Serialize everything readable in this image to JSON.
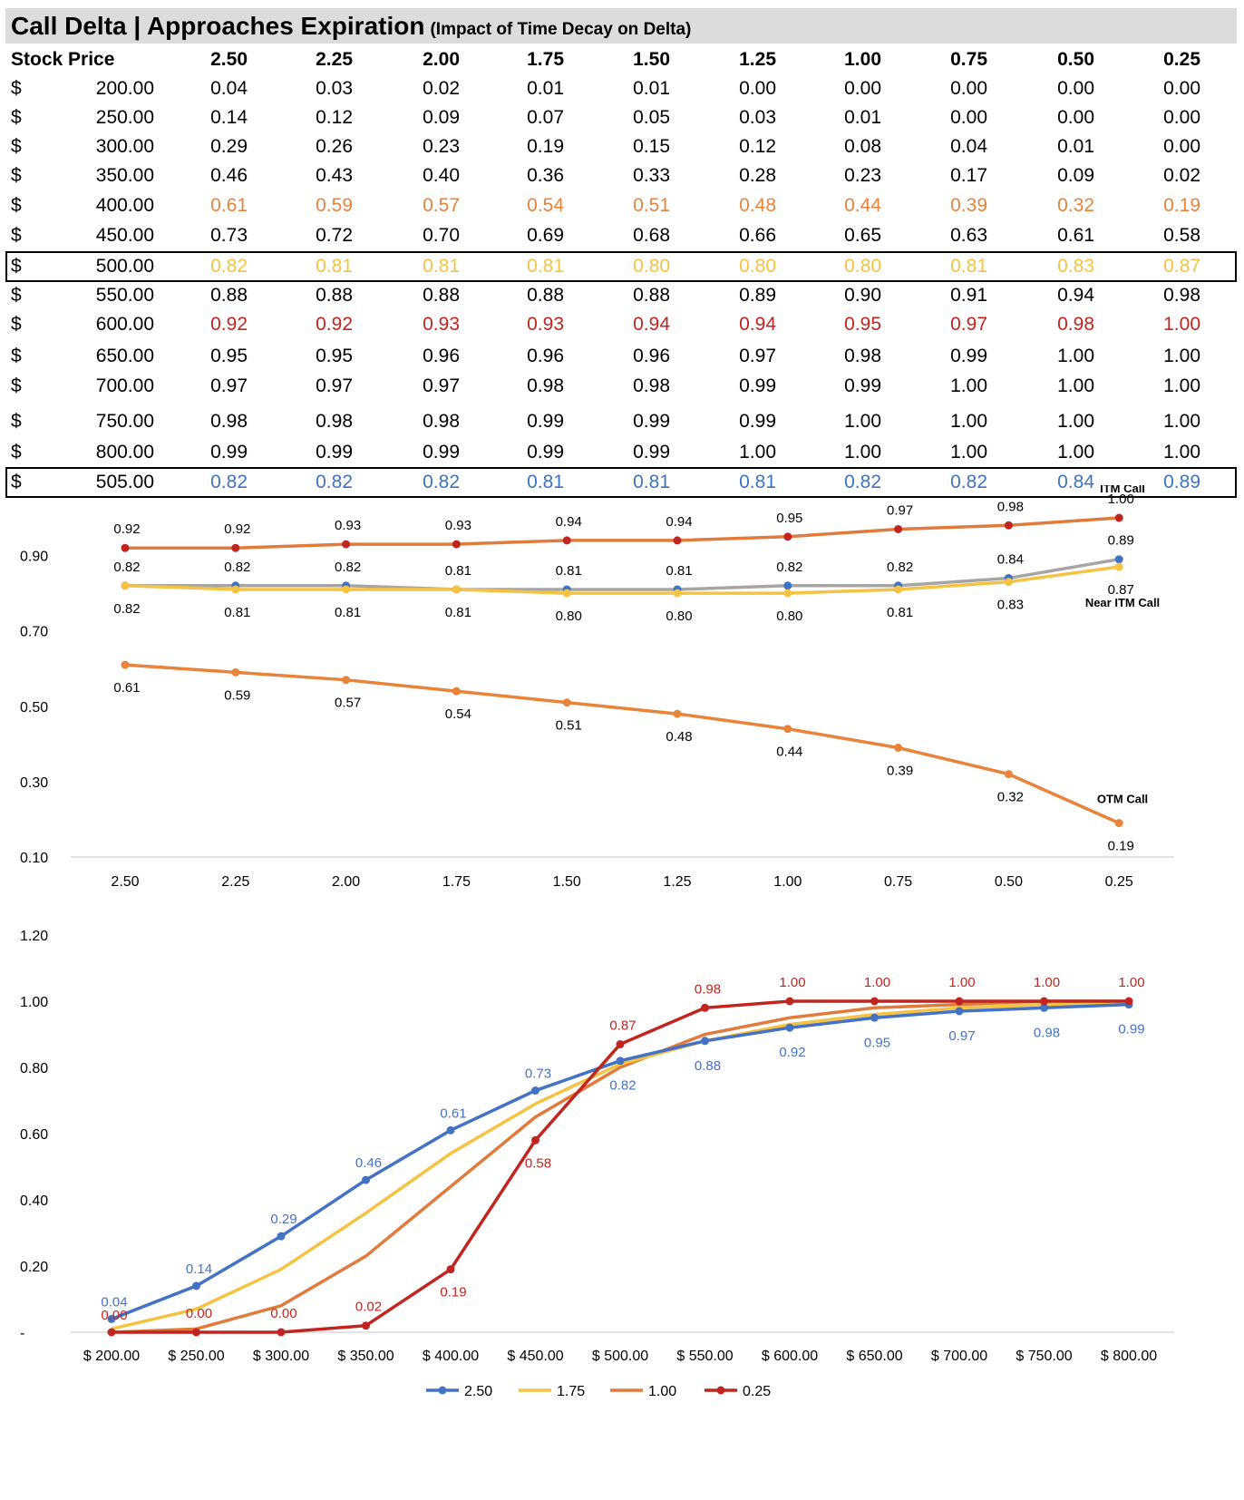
{
  "title": "Call Delta | Approaches Expiration",
  "subtitle": "(Impact of Time Decay on Delta)",
  "table": {
    "header_label": "Stock Price",
    "currency": "$",
    "times": [
      "2.50",
      "2.25",
      "2.00",
      "1.75",
      "1.50",
      "1.25",
      "1.00",
      "0.75",
      "0.50",
      "0.25"
    ],
    "rows": [
      {
        "price": "200.00",
        "values": [
          "0.04",
          "0.03",
          "0.02",
          "0.01",
          "0.01",
          "0.00",
          "0.00",
          "0.00",
          "0.00",
          "0.00"
        ],
        "color": "#000000",
        "boxed": false
      },
      {
        "price": "250.00",
        "values": [
          "0.14",
          "0.12",
          "0.09",
          "0.07",
          "0.05",
          "0.03",
          "0.01",
          "0.00",
          "0.00",
          "0.00"
        ],
        "color": "#000000",
        "boxed": false
      },
      {
        "price": "300.00",
        "values": [
          "0.29",
          "0.26",
          "0.23",
          "0.19",
          "0.15",
          "0.12",
          "0.08",
          "0.04",
          "0.01",
          "0.00"
        ],
        "color": "#000000",
        "boxed": false
      },
      {
        "price": "350.00",
        "values": [
          "0.46",
          "0.43",
          "0.40",
          "0.36",
          "0.33",
          "0.28",
          "0.23",
          "0.17",
          "0.09",
          "0.02"
        ],
        "color": "#000000",
        "boxed": false
      },
      {
        "price": "400.00",
        "values": [
          "0.61",
          "0.59",
          "0.57",
          "0.54",
          "0.51",
          "0.48",
          "0.44",
          "0.39",
          "0.32",
          "0.19"
        ],
        "color": "#e8833a",
        "boxed": false
      },
      {
        "price": "450.00",
        "values": [
          "0.73",
          "0.72",
          "0.70",
          "0.69",
          "0.68",
          "0.66",
          "0.65",
          "0.63",
          "0.61",
          "0.58"
        ],
        "color": "#000000",
        "boxed": false
      },
      {
        "price": "500.00",
        "values": [
          "0.82",
          "0.81",
          "0.81",
          "0.81",
          "0.80",
          "0.80",
          "0.80",
          "0.81",
          "0.83",
          "0.87"
        ],
        "color": "#f5c342",
        "boxed": true
      },
      {
        "price": "550.00",
        "values": [
          "0.88",
          "0.88",
          "0.88",
          "0.88",
          "0.88",
          "0.89",
          "0.90",
          "0.91",
          "0.94",
          "0.98"
        ],
        "color": "#000000",
        "boxed": false
      },
      {
        "price": "600.00",
        "values": [
          "0.92",
          "0.92",
          "0.93",
          "0.93",
          "0.94",
          "0.94",
          "0.95",
          "0.97",
          "0.98",
          "1.00"
        ],
        "color": "#c0251f",
        "boxed": false
      },
      {
        "price": "650.00",
        "values": [
          "0.95",
          "0.95",
          "0.96",
          "0.96",
          "0.96",
          "0.97",
          "0.98",
          "0.99",
          "1.00",
          "1.00"
        ],
        "color": "#000000",
        "boxed": false
      },
      {
        "price": "700.00",
        "values": [
          "0.97",
          "0.97",
          "0.97",
          "0.98",
          "0.98",
          "0.99",
          "0.99",
          "1.00",
          "1.00",
          "1.00"
        ],
        "color": "#000000",
        "boxed": false
      },
      {
        "price": "750.00",
        "values": [
          "0.98",
          "0.98",
          "0.98",
          "0.99",
          "0.99",
          "0.99",
          "1.00",
          "1.00",
          "1.00",
          "1.00"
        ],
        "color": "#000000",
        "boxed": false
      },
      {
        "price": "800.00",
        "values": [
          "0.99",
          "0.99",
          "0.99",
          "0.99",
          "0.99",
          "1.00",
          "1.00",
          "1.00",
          "1.00",
          "1.00"
        ],
        "color": "#000000",
        "boxed": false
      },
      {
        "price": "505.00",
        "values": [
          "0.82",
          "0.82",
          "0.82",
          "0.81",
          "0.81",
          "0.81",
          "0.82",
          "0.82",
          "0.84",
          "0.89"
        ],
        "color": "#3d73c5",
        "boxed": true
      }
    ]
  },
  "chart_data": [
    {
      "type": "line",
      "x": [
        "2.50",
        "2.25",
        "2.00",
        "1.75",
        "1.50",
        "1.25",
        "1.00",
        "0.75",
        "0.50",
        "0.25"
      ],
      "yticks": [
        "0.10",
        "0.30",
        "0.50",
        "0.70",
        "0.90"
      ],
      "ylim": [
        0.1,
        1.0
      ],
      "grid": false,
      "series": [
        {
          "name": "ITM Call",
          "values": [
            0.92,
            0.92,
            0.93,
            0.93,
            0.94,
            0.94,
            0.95,
            0.97,
            0.98,
            1.0
          ],
          "labels": [
            "0.92",
            "0.92",
            "0.93",
            "0.93",
            "0.94",
            "0.94",
            "0.95",
            "0.97",
            "0.98",
            "1.00"
          ],
          "color": "#e07b3c",
          "marker": "#c0251f",
          "label_pos": "above"
        },
        {
          "name": "",
          "values": [
            0.82,
            0.82,
            0.82,
            0.81,
            0.81,
            0.81,
            0.82,
            0.82,
            0.84,
            0.89
          ],
          "labels": [
            "0.82",
            "0.82",
            "0.82",
            "0.81",
            "0.81",
            "0.81",
            "0.82",
            "0.82",
            "0.84",
            "0.89"
          ],
          "color": "#a5a5a5",
          "marker": "#3d73c5",
          "label_pos": "above"
        },
        {
          "name": "Near ITM Call",
          "values": [
            0.82,
            0.81,
            0.81,
            0.81,
            0.8,
            0.8,
            0.8,
            0.81,
            0.83,
            0.87
          ],
          "labels": [
            "0.82",
            "0.81",
            "0.81",
            "0.81",
            "0.80",
            "0.80",
            "0.80",
            "0.81",
            "0.83",
            "0.87"
          ],
          "color": "#f5c342",
          "marker": "#f5c342",
          "label_pos": "below"
        },
        {
          "name": "OTM Call",
          "values": [
            0.61,
            0.59,
            0.57,
            0.54,
            0.51,
            0.48,
            0.44,
            0.39,
            0.32,
            0.19
          ],
          "labels": [
            "0.61",
            "0.59",
            "0.57",
            "0.54",
            "0.51",
            "0.48",
            "0.44",
            "0.39",
            "0.32",
            "0.19"
          ],
          "color": "#e8833a",
          "marker": "#e8833a",
          "label_pos": "below"
        }
      ]
    },
    {
      "type": "line",
      "x": [
        "$ 200.00",
        "$ 250.00",
        "$ 300.00",
        "$ 350.00",
        "$ 400.00",
        "$ 450.00",
        "$ 500.00",
        "$ 550.00",
        "$ 600.00",
        "$ 650.00",
        "$ 700.00",
        "$ 750.00",
        "$ 800.00"
      ],
      "yticks": [
        "-",
        "0.20",
        "0.40",
        "0.60",
        "0.80",
        "1.00",
        "1.20"
      ],
      "ylim": [
        0,
        1.2
      ],
      "grid": false,
      "legend": "bottom",
      "series": [
        {
          "name": "2.50",
          "values": [
            0.04,
            0.14,
            0.29,
            0.46,
            0.61,
            0.73,
            0.82,
            0.88,
            0.92,
            0.95,
            0.97,
            0.98,
            0.99
          ],
          "labels": [
            "0.04",
            "0.14",
            "0.29",
            "0.46",
            "0.61",
            "0.73",
            "0.82",
            "0.88",
            "0.92",
            "0.95",
            "0.97",
            "0.98",
            "0.99"
          ],
          "color": "#4472c4",
          "markers": true
        },
        {
          "name": "1.75",
          "values": [
            0.01,
            0.07,
            0.19,
            0.36,
            0.54,
            0.69,
            0.81,
            0.88,
            0.93,
            0.96,
            0.98,
            0.99,
            0.99
          ],
          "color": "#f5c342",
          "markers": false
        },
        {
          "name": "1.00",
          "values": [
            0.0,
            0.01,
            0.08,
            0.23,
            0.44,
            0.65,
            0.8,
            0.9,
            0.95,
            0.98,
            0.99,
            1.0,
            1.0
          ],
          "color": "#e07b3c",
          "markers": false
        },
        {
          "name": "0.25",
          "values": [
            0.0,
            0.0,
            0.0,
            0.02,
            0.19,
            0.58,
            0.87,
            0.98,
            1.0,
            1.0,
            1.0,
            1.0,
            1.0
          ],
          "labels": [
            "0.00",
            "0.00",
            "0.00",
            "0.02",
            "0.19",
            "0.58",
            "0.87",
            "0.98",
            "1.00",
            "1.00",
            "1.00",
            "1.00",
            "1.00"
          ],
          "color": "#c0251f",
          "markers": true
        }
      ]
    }
  ]
}
